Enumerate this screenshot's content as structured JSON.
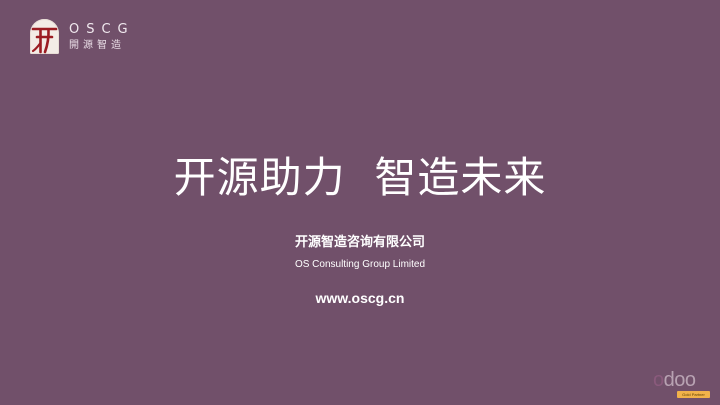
{
  "logo": {
    "glyph": "开",
    "name_en": "OSCG",
    "name_cn": "開源智造"
  },
  "title": "开源助力  智造未来",
  "company": {
    "name_cn": "开源智造咨询有限公司",
    "name_en": "OS Consulting Group Limited",
    "website": "www.oscg.cn"
  },
  "partner": {
    "wordmark": "odoo",
    "badge": "Gold Partner"
  },
  "colors": {
    "background": "#71506a",
    "logo_red": "#9b1c22",
    "badge_gold": "#f1b24a"
  }
}
